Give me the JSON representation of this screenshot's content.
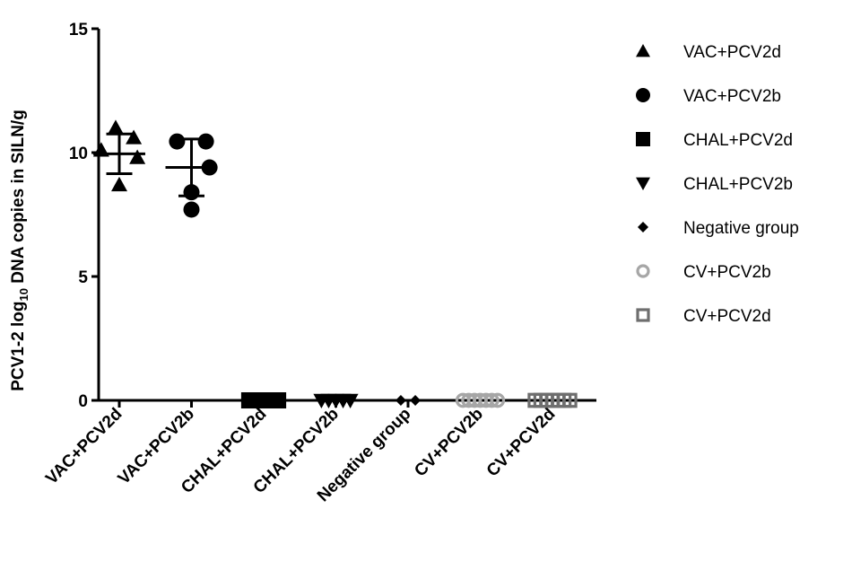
{
  "chart_data": {
    "type": "scatter",
    "ylabel_parts": {
      "prefix": "PCV1-2 log",
      "subscript": "10",
      "suffix": " DNA copies in SILN/g"
    },
    "ylim": [
      0,
      15
    ],
    "yticks": [
      0,
      5,
      10,
      15
    ],
    "categories": [
      "VAC+PCV2d",
      "VAC+PCV2b",
      "CHAL+PCV2d",
      "CHAL+PCV2b",
      "Negative group",
      "CV+PCV2b",
      "CV+PCV2d"
    ],
    "series": [
      {
        "name": "VAC+PCV2d",
        "marker": "triangle-up",
        "color": "#000000",
        "points": [
          [
            -0.25,
            10.1
          ],
          [
            -0.05,
            11.0
          ],
          [
            0.25,
            9.8
          ],
          [
            0.0,
            8.7
          ],
          [
            0.2,
            10.6
          ]
        ],
        "mean": 9.95,
        "sd": 0.8
      },
      {
        "name": "VAC+PCV2b",
        "marker": "circle",
        "color": "#000000",
        "points": [
          [
            -0.2,
            10.45
          ],
          [
            0.2,
            10.45
          ],
          [
            0.25,
            9.4
          ],
          [
            0.0,
            8.4
          ],
          [
            0.0,
            7.7
          ]
        ],
        "mean": 9.4,
        "sd": 1.15
      },
      {
        "name": "CHAL+PCV2d",
        "marker": "square",
        "color": "#000000",
        "points": [
          [
            -0.2,
            0
          ],
          [
            -0.1,
            0
          ],
          [
            0.0,
            0
          ],
          [
            0.1,
            0
          ],
          [
            0.2,
            0
          ]
        ],
        "mean": 0,
        "sd": 0
      },
      {
        "name": "CHAL+PCV2b",
        "marker": "triangle-down",
        "color": "#000000",
        "points": [
          [
            -0.2,
            0
          ],
          [
            -0.1,
            0
          ],
          [
            0.0,
            0
          ],
          [
            0.1,
            0
          ],
          [
            0.2,
            0
          ]
        ],
        "mean": 0,
        "sd": 0
      },
      {
        "name": "Negative group",
        "marker": "diamond",
        "color": "#000000",
        "points": [
          [
            -0.1,
            0
          ],
          [
            0.1,
            0
          ]
        ],
        "mean": 0,
        "sd": 0
      },
      {
        "name": "CV+PCV2b",
        "marker": "circle-open",
        "color": "#a6a6a6",
        "points": [
          [
            -0.24,
            0
          ],
          [
            -0.16,
            0
          ],
          [
            -0.08,
            0
          ],
          [
            0.0,
            0
          ],
          [
            0.08,
            0
          ],
          [
            0.16,
            0
          ],
          [
            0.24,
            0
          ]
        ],
        "mean": 0,
        "sd": 0
      },
      {
        "name": "CV+PCV2d",
        "marker": "square-open",
        "color": "#6e6e6e",
        "points": [
          [
            -0.24,
            0
          ],
          [
            -0.16,
            0
          ],
          [
            -0.08,
            0
          ],
          [
            0.0,
            0
          ],
          [
            0.08,
            0
          ],
          [
            0.16,
            0
          ],
          [
            0.24,
            0
          ]
        ],
        "mean": 0,
        "sd": 0
      }
    ],
    "legend_position": "right",
    "grid": false
  }
}
